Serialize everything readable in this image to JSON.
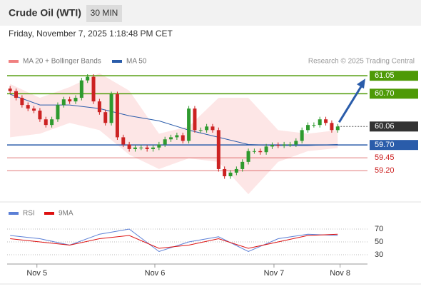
{
  "chart_data": {
    "type": "candlestick",
    "title": "Crude Oil (WTI)",
    "interval": "30 MIN",
    "subtitle": "Friday, November 7, 2025 1:18:48 PM CET",
    "credit": "Research © 2025 Trading Central",
    "legend": [
      {
        "name": "MA 20 + Bollinger Bands",
        "color": "#f08080"
      },
      {
        "name": "MA 50",
        "color": "#2a5caa"
      }
    ],
    "ylim": [
      58.7,
      61.15
    ],
    "xlim": [
      -0.5,
      60
    ],
    "xticks": [
      {
        "value": 4.5,
        "label": "Nov 5"
      },
      {
        "value": 24.3,
        "label": "Nov 6"
      },
      {
        "value": 44.3,
        "label": "Nov 7"
      },
      {
        "value": 55.4,
        "label": "Nov 8"
      }
    ],
    "up_color": "#2e9a2e",
    "down_color": "#cc2222",
    "open": [
      60.8,
      60.75,
      60.62,
      60.48,
      60.41,
      60.37,
      60.2,
      60.09,
      60.2,
      60.48,
      60.59,
      60.55,
      60.62,
      60.96,
      61.03,
      60.55,
      60.34,
      60.13,
      60.69,
      59.85,
      59.71,
      59.62,
      59.65,
      59.65,
      59.62,
      59.65,
      59.71,
      59.81,
      59.85,
      59.89,
      59.78,
      60.41,
      59.99,
      59.99,
      60.06,
      59.99,
      59.23,
      59.09,
      59.16,
      59.23,
      59.37,
      59.58,
      59.58,
      59.56,
      59.67,
      59.7,
      59.69,
      59.71,
      59.71,
      59.78,
      59.99,
      60.09,
      60.09,
      60.2,
      60.13,
      59.99
    ],
    "high": [
      60.85,
      60.8,
      60.67,
      60.53,
      60.46,
      60.42,
      60.25,
      60.25,
      60.53,
      60.64,
      60.64,
      60.67,
      61.01,
      61.08,
      61.08,
      60.6,
      60.39,
      60.74,
      60.74,
      59.9,
      59.76,
      59.7,
      59.7,
      59.7,
      59.7,
      59.76,
      59.86,
      59.9,
      59.94,
      59.94,
      60.46,
      60.46,
      60.04,
      60.11,
      60.11,
      60.04,
      59.28,
      59.21,
      59.28,
      59.42,
      59.63,
      59.63,
      59.63,
      59.72,
      59.75,
      59.75,
      59.76,
      59.76,
      59.83,
      60.04,
      60.14,
      60.14,
      60.25,
      60.25,
      60.18,
      60.11
    ],
    "low": [
      60.7,
      60.57,
      60.43,
      60.36,
      60.32,
      60.15,
      60.04,
      60.04,
      60.15,
      60.43,
      60.5,
      60.5,
      60.57,
      60.91,
      60.5,
      60.29,
      60.08,
      60.08,
      59.8,
      59.66,
      59.57,
      59.57,
      59.6,
      59.57,
      59.57,
      59.6,
      59.66,
      59.76,
      59.8,
      59.73,
      59.73,
      59.94,
      59.94,
      59.94,
      59.94,
      59.18,
      59.04,
      59.04,
      59.11,
      59.18,
      59.32,
      59.53,
      59.51,
      59.51,
      59.62,
      59.64,
      59.64,
      59.66,
      59.66,
      59.73,
      59.94,
      60.04,
      60.04,
      60.08,
      59.94,
      59.94
    ],
    "close": [
      60.75,
      60.62,
      60.48,
      60.41,
      60.37,
      60.2,
      60.09,
      60.2,
      60.48,
      60.59,
      60.55,
      60.62,
      60.96,
      61.03,
      60.55,
      60.34,
      60.13,
      60.69,
      59.85,
      59.71,
      59.62,
      59.65,
      59.65,
      59.62,
      59.65,
      59.71,
      59.81,
      59.85,
      59.89,
      59.78,
      60.41,
      59.99,
      59.99,
      60.06,
      59.99,
      59.23,
      59.09,
      59.16,
      59.23,
      59.37,
      59.58,
      59.58,
      59.56,
      59.67,
      59.7,
      59.69,
      59.71,
      59.71,
      59.78,
      59.99,
      60.09,
      60.09,
      60.2,
      60.13,
      59.99,
      60.06
    ],
    "indicator_x": [
      0,
      5,
      10,
      15,
      20,
      25,
      30,
      35,
      40,
      45,
      50,
      55
    ],
    "ma50": [
      60.69,
      60.48,
      60.48,
      60.41,
      60.27,
      60.17,
      59.99,
      59.85,
      59.71,
      59.69,
      59.69,
      59.71
    ],
    "band_upper": [
      60.89,
      60.62,
      60.83,
      61.1,
      60.76,
      59.92,
      60.06,
      60.62,
      60.62,
      59.99,
      59.92,
      59.99
    ],
    "band_lower": [
      59.85,
      59.92,
      60.13,
      59.99,
      59.51,
      59.23,
      59.44,
      59.37,
      58.74,
      59.37,
      59.58,
      59.64
    ],
    "levels": [
      {
        "value": 61.05,
        "label": "61.05",
        "color": "#4e9a06",
        "style": "box"
      },
      {
        "value": 60.7,
        "label": "60.70",
        "color": "#4e9a06",
        "style": "box"
      },
      {
        "value": 60.06,
        "label": "60.06",
        "color": "#333333",
        "style": "current"
      },
      {
        "value": 59.7,
        "label": "59.70",
        "color": "#2a5caa",
        "style": "box"
      },
      {
        "value": 59.45,
        "label": "59.45",
        "color": "#cc2222",
        "style": "text"
      },
      {
        "value": 59.2,
        "label": "59.20",
        "color": "#cc2222",
        "style": "text"
      }
    ],
    "rsi": {
      "legend": [
        {
          "name": "RSI",
          "color": "#5b7fd6"
        },
        {
          "name": "9MA",
          "color": "#dd1111"
        }
      ],
      "ylim": [
        20,
        80
      ],
      "yticks": [
        30,
        50,
        70
      ],
      "values": [
        60,
        55,
        45,
        62,
        70,
        35,
        50,
        58,
        35,
        55,
        62,
        60
      ],
      "ma": [
        55,
        50,
        45,
        55,
        60,
        40,
        45,
        55,
        40,
        50,
        60,
        62
      ]
    }
  }
}
